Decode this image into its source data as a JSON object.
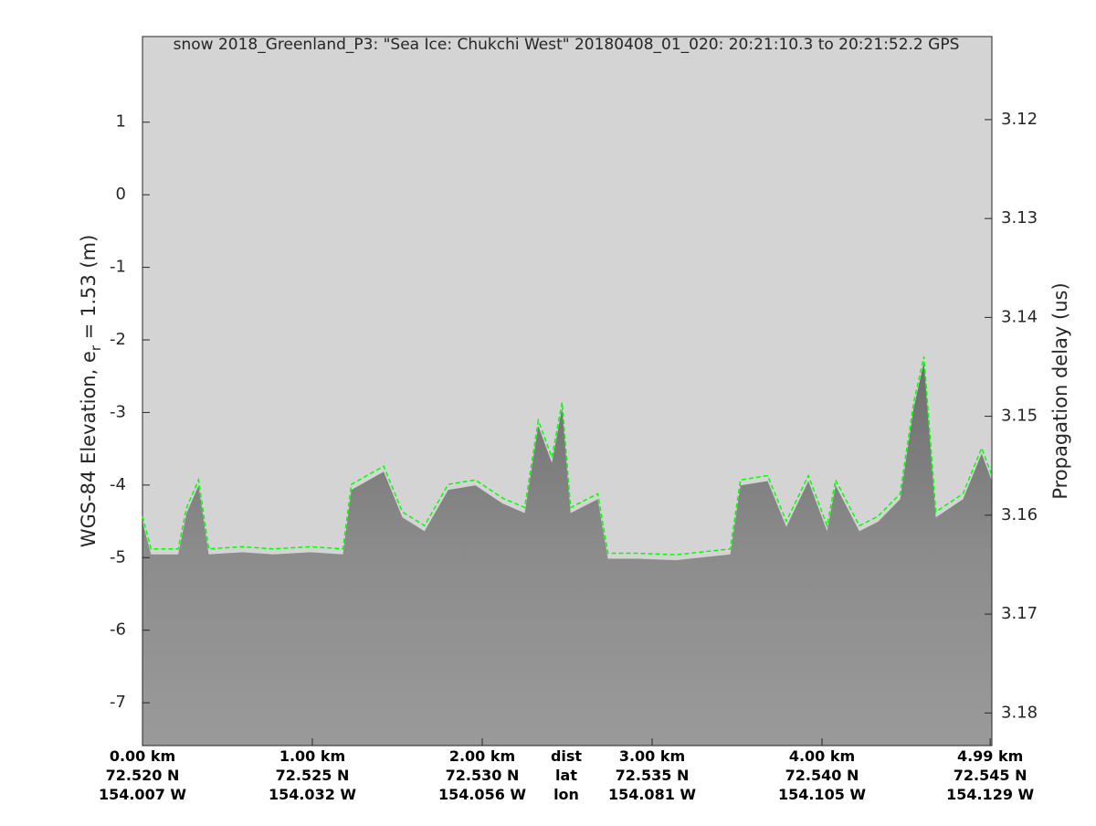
{
  "chart_data": {
    "type": "line",
    "title": "snow 2018_Greenland_P3: \"Sea Ice: Chukchi West\"  20180408_01_020: 20:21:10.3 to 20:21:52.2 GPS",
    "ylabel": {
      "pre": "WGS-84 Elevation, e",
      "sub": "r",
      "post": " = 1.53 (m)"
    },
    "y2label": "Propagation delay (us)",
    "xlim": [
      0,
      5.0
    ],
    "ylim": [
      -7.59,
      2.18
    ],
    "y2lim": [
      3.1116,
      3.1833
    ],
    "yticks": [
      -7,
      -6,
      -5,
      -4,
      -3,
      -2,
      -1,
      0,
      1
    ],
    "y2ticks": [
      3.12,
      3.13,
      3.14,
      3.15,
      3.16,
      3.17,
      3.18
    ],
    "xticks": [
      {
        "value": 0,
        "label": "0.00 km"
      },
      {
        "value": 1,
        "label": "1.00 km"
      },
      {
        "value": 2,
        "label": "2.00 km"
      },
      {
        "value": 3,
        "label": "3.00 km"
      },
      {
        "value": 4,
        "label": "4.00 km"
      },
      {
        "value": 4.99,
        "label": "4.99 km"
      }
    ],
    "xticks_lat": [
      "72.520 N",
      "72.525 N",
      "72.530 N",
      "72.535 N",
      "72.540 N",
      "72.545 N"
    ],
    "xticks_lon": [
      "154.007 W",
      "154.032 W",
      "154.056 W",
      "154.081 W",
      "154.105 W",
      "154.129 W"
    ],
    "x_row_labels": [
      "dist",
      "lat",
      "lon"
    ],
    "series": [
      {
        "color": "#00ff00",
        "x": [
          0,
          0.05,
          0.21,
          0.26,
          0.33,
          0.39,
          0.59,
          0.77,
          0.99,
          1.18,
          1.23,
          1.42,
          1.53,
          1.66,
          1.8,
          1.96,
          2.12,
          2.25,
          2.33,
          2.41,
          2.47,
          2.52,
          2.68,
          2.74,
          2.92,
          3.14,
          3.46,
          3.52,
          3.68,
          3.79,
          3.92,
          4.03,
          4.08,
          4.22,
          4.33,
          4.46,
          4.54,
          4.6,
          4.67,
          4.83,
          4.94,
          5.0
        ],
        "values": [
          -4.43,
          -4.88,
          -4.88,
          -4.31,
          -3.93,
          -4.88,
          -4.85,
          -4.88,
          -4.85,
          -4.88,
          -3.99,
          -3.74,
          -4.37,
          -4.56,
          -3.99,
          -3.93,
          -4.18,
          -4.31,
          -3.11,
          -3.62,
          -2.86,
          -4.31,
          -4.12,
          -4.94,
          -4.94,
          -4.96,
          -4.88,
          -3.93,
          -3.87,
          -4.5,
          -3.87,
          -4.56,
          -3.93,
          -4.56,
          -4.43,
          -4.12,
          -2.86,
          -2.23,
          -4.37,
          -4.12,
          -3.49,
          -3.87
        ]
      }
    ]
  }
}
